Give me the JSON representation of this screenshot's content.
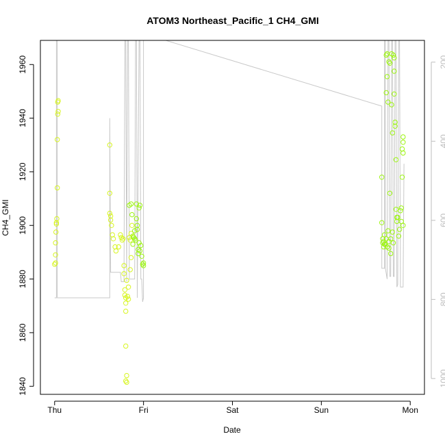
{
  "chart_data": {
    "type": "scatter",
    "title": "ATOM3 Northeast_Pacific_1 CH4_GMI",
    "xlabel": "Date",
    "ylabel": "CH4_GMI",
    "x_ticks": [
      "Thu",
      "Fri",
      "Sat",
      "Sun",
      "Mon"
    ],
    "y_ticks": [
      1840,
      1860,
      1880,
      1900,
      1920,
      1940,
      1960
    ],
    "y_right_ticks": [
      200,
      400,
      600,
      800,
      1000
    ],
    "xlim": [
      -0.16,
      4.16
    ],
    "ylim": [
      1837,
      1969
    ],
    "y_right_lim": [
      1040,
      145
    ],
    "y_right_reversed": true,
    "colors": {
      "point_light": "#d7f51f",
      "point_green": "#9cf510",
      "line": "#c8c8c8",
      "right_axis": "#bdbdbd"
    },
    "series": [
      {
        "points": [
          {
            "x": 0.0,
            "y": 1885.5
          },
          {
            "x": 0.01,
            "y": 1886.0
          },
          {
            "x": 0.01,
            "y": 1889.0
          },
          {
            "x": 0.01,
            "y": 1893.5
          },
          {
            "x": 0.015,
            "y": 1897.5
          },
          {
            "x": 0.02,
            "y": 1900.5
          },
          {
            "x": 0.02,
            "y": 1901.0
          },
          {
            "x": 0.025,
            "y": 1902.5
          },
          {
            "x": 0.03,
            "y": 1914.0
          },
          {
            "x": 0.03,
            "y": 1932.0
          },
          {
            "x": 0.035,
            "y": 1941.5
          },
          {
            "x": 0.04,
            "y": 1942.5
          },
          {
            "x": 0.035,
            "y": 1946.0
          },
          {
            "x": 0.04,
            "y": 1946.5
          },
          {
            "x": 0.62,
            "y": 1930.0
          },
          {
            "x": 0.62,
            "y": 1912.0
          },
          {
            "x": 0.62,
            "y": 1904.5
          },
          {
            "x": 0.63,
            "y": 1903.5
          },
          {
            "x": 0.63,
            "y": 1902.0
          },
          {
            "x": 0.64,
            "y": 1900.0
          },
          {
            "x": 0.65,
            "y": 1896.5
          },
          {
            "x": 0.66,
            "y": 1895.0
          },
          {
            "x": 0.68,
            "y": 1892.0
          },
          {
            "x": 0.69,
            "y": 1890.5
          },
          {
            "x": 0.72,
            "y": 1892.0
          },
          {
            "x": 0.74,
            "y": 1896.5
          },
          {
            "x": 0.75,
            "y": 1895.5
          },
          {
            "x": 0.76,
            "y": 1894.5
          },
          {
            "x": 0.77,
            "y": 1895.0
          },
          {
            "x": 0.78,
            "y": 1885.0
          },
          {
            "x": 0.78,
            "y": 1882.0
          },
          {
            "x": 0.79,
            "y": 1876.0
          },
          {
            "x": 0.79,
            "y": 1874.0
          },
          {
            "x": 0.8,
            "y": 1873.0
          },
          {
            "x": 0.8,
            "y": 1871.0
          },
          {
            "x": 0.8,
            "y": 1868.0
          },
          {
            "x": 0.8,
            "y": 1855.0
          },
          {
            "x": 0.81,
            "y": 1844.0
          },
          {
            "x": 0.8,
            "y": 1842.0
          },
          {
            "x": 0.81,
            "y": 1841.5
          },
          {
            "x": 0.81,
            "y": 1879.5
          },
          {
            "x": 0.82,
            "y": 1873.5
          },
          {
            "x": 0.83,
            "y": 1872.5
          },
          {
            "x": 0.83,
            "y": 1877.0
          },
          {
            "x": 0.84,
            "y": 1895.5
          },
          {
            "x": 0.85,
            "y": 1894.5
          },
          {
            "x": 0.85,
            "y": 1883.5
          },
          {
            "x": 0.86,
            "y": 1897.0
          },
          {
            "x": 0.87,
            "y": 1900.0
          },
          {
            "x": 0.86,
            "y": 1888.0
          }
        ]
      },
      {
        "points": [
          {
            "x": 0.84,
            "y": 1907.5
          },
          {
            "x": 0.86,
            "y": 1908.0
          },
          {
            "x": 0.87,
            "y": 1904.0
          },
          {
            "x": 0.88,
            "y": 1896.0
          },
          {
            "x": 0.88,
            "y": 1893.0
          },
          {
            "x": 0.89,
            "y": 1895.5
          },
          {
            "x": 0.9,
            "y": 1898.0
          },
          {
            "x": 0.9,
            "y": 1895.0
          },
          {
            "x": 0.91,
            "y": 1894.5
          },
          {
            "x": 0.92,
            "y": 1908.0
          },
          {
            "x": 0.92,
            "y": 1902.5
          },
          {
            "x": 0.93,
            "y": 1900.0
          },
          {
            "x": 0.93,
            "y": 1898.5
          },
          {
            "x": 0.94,
            "y": 1891.0
          },
          {
            "x": 0.94,
            "y": 1889.5
          },
          {
            "x": 0.95,
            "y": 1906.5
          },
          {
            "x": 0.95,
            "y": 1893.5
          },
          {
            "x": 0.96,
            "y": 1907.5
          },
          {
            "x": 0.96,
            "y": 1890.5
          },
          {
            "x": 0.97,
            "y": 1892.5
          },
          {
            "x": 0.98,
            "y": 1888.5
          },
          {
            "x": 0.99,
            "y": 1885.5
          },
          {
            "x": 1.0,
            "y": 1886.0
          },
          {
            "x": 1.0,
            "y": 1885.0
          },
          {
            "x": 3.68,
            "y": 1918.0
          },
          {
            "x": 3.68,
            "y": 1901.0
          },
          {
            "x": 3.69,
            "y": 1895.0
          },
          {
            "x": 3.69,
            "y": 1893.5
          },
          {
            "x": 3.7,
            "y": 1894.0
          },
          {
            "x": 3.71,
            "y": 1896.5
          },
          {
            "x": 3.72,
            "y": 1893.0
          },
          {
            "x": 3.73,
            "y": 1895.0
          },
          {
            "x": 3.73,
            "y": 1963.5
          },
          {
            "x": 3.74,
            "y": 1964.0
          },
          {
            "x": 3.74,
            "y": 1955.5
          },
          {
            "x": 3.73,
            "y": 1949.5
          },
          {
            "x": 3.75,
            "y": 1946.0
          },
          {
            "x": 3.75,
            "y": 1898.0
          },
          {
            "x": 3.76,
            "y": 1891.5
          },
          {
            "x": 3.76,
            "y": 1961.0
          },
          {
            "x": 3.77,
            "y": 1960.5
          },
          {
            "x": 3.77,
            "y": 1912.0
          },
          {
            "x": 3.78,
            "y": 1895.0
          },
          {
            "x": 3.78,
            "y": 1889.5
          },
          {
            "x": 3.79,
            "y": 1964.0
          },
          {
            "x": 3.79,
            "y": 1945.0
          },
          {
            "x": 3.8,
            "y": 1934.5
          },
          {
            "x": 3.8,
            "y": 1897.5
          },
          {
            "x": 3.81,
            "y": 1893.5
          },
          {
            "x": 3.81,
            "y": 1963.5
          },
          {
            "x": 3.82,
            "y": 1962.5
          },
          {
            "x": 3.82,
            "y": 1957.5
          },
          {
            "x": 3.82,
            "y": 1949.0
          },
          {
            "x": 3.83,
            "y": 1938.5
          },
          {
            "x": 3.83,
            "y": 1937.0
          },
          {
            "x": 3.84,
            "y": 1924.5
          },
          {
            "x": 3.84,
            "y": 1906.0
          },
          {
            "x": 3.85,
            "y": 1903.0
          },
          {
            "x": 3.85,
            "y": 1901.5
          },
          {
            "x": 3.86,
            "y": 1903.0
          },
          {
            "x": 3.87,
            "y": 1896.0
          },
          {
            "x": 3.88,
            "y": 1898.5
          },
          {
            "x": 3.89,
            "y": 1905.5
          },
          {
            "x": 3.9,
            "y": 1906.5
          },
          {
            "x": 3.9,
            "y": 1901.5
          },
          {
            "x": 3.91,
            "y": 1918.0
          },
          {
            "x": 3.91,
            "y": 1928.5
          },
          {
            "x": 3.92,
            "y": 1931.0
          },
          {
            "x": 3.92,
            "y": 1933.0
          },
          {
            "x": 3.92,
            "y": 1927.0
          },
          {
            "x": 3.92,
            "y": 1900.0
          },
          {
            "x": 3.7,
            "y": 1892.0
          },
          {
            "x": 3.71,
            "y": 1893.0
          },
          {
            "x": 3.74,
            "y": 1892.0
          },
          {
            "x": 3.76,
            "y": 1894.0
          }
        ]
      }
    ],
    "line": [
      [
        0.0,
        1873
      ],
      [
        0.02,
        1873
      ],
      [
        0.02,
        1969
      ],
      [
        0.03,
        1969
      ],
      [
        0.03,
        1873
      ],
      [
        0.6,
        1873
      ],
      [
        0.62,
        1873
      ],
      [
        0.62,
        1940
      ],
      [
        0.63,
        1882.5
      ],
      [
        0.74,
        1882.5
      ],
      [
        0.75,
        1879
      ],
      [
        0.78,
        1879
      ],
      [
        0.79,
        1969
      ],
      [
        0.8,
        1969
      ],
      [
        0.81,
        1879
      ],
      [
        0.82,
        1969
      ],
      [
        0.83,
        1969
      ],
      [
        0.84,
        1880
      ],
      [
        0.9,
        1880
      ],
      [
        0.91,
        1969
      ],
      [
        0.92,
        1969
      ],
      [
        0.93,
        1873
      ],
      [
        0.95,
        1969
      ],
      [
        0.96,
        1969
      ],
      [
        0.97,
        1880
      ],
      [
        0.98,
        1880
      ],
      [
        0.99,
        1871.5
      ],
      [
        1.0,
        1873
      ],
      [
        1.0,
        1969
      ],
      [
        1.25,
        1969
      ],
      [
        3.68,
        1944.5
      ],
      [
        3.68,
        1884
      ],
      [
        3.71,
        1884
      ],
      [
        3.71,
        1969
      ],
      [
        3.72,
        1969
      ],
      [
        3.72,
        1884
      ],
      [
        3.74,
        1880
      ],
      [
        3.75,
        1969
      ],
      [
        3.76,
        1969
      ],
      [
        3.77,
        1881
      ],
      [
        3.78,
        1881
      ],
      [
        3.79,
        1969
      ],
      [
        3.8,
        1969
      ],
      [
        3.81,
        1881
      ],
      [
        3.82,
        1881
      ],
      [
        3.83,
        1969
      ],
      [
        3.84,
        1969
      ],
      [
        3.85,
        1877
      ],
      [
        3.86,
        1878
      ],
      [
        3.87,
        1969
      ],
      [
        3.88,
        1969
      ],
      [
        3.89,
        1877
      ],
      [
        3.92,
        1877
      ],
      [
        3.93,
        1923
      ]
    ]
  }
}
